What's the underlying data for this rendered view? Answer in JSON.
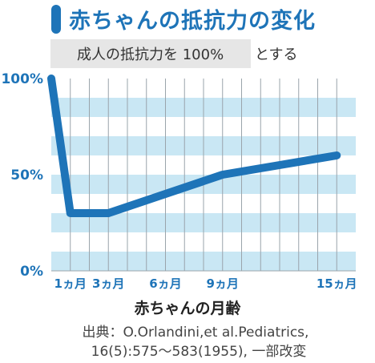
{
  "title": "赤ちゃんの抵抗力の変化",
  "note": {
    "boxed": "成人の抵抗力を 100%",
    "suffix": "とする"
  },
  "source": {
    "line1": "出典：O.Orlandini,et al.Pediatrics,",
    "line2": "16(5):575～583(1955), 一部改変"
  },
  "colors": {
    "accent": "#1e74b8",
    "stripe": "#c9e7f4",
    "line": "#1e74b8"
  },
  "chart_data": {
    "type": "line",
    "xlabel": "赤ちゃんの月齢",
    "ylabel": "",
    "xlim": [
      0,
      16
    ],
    "ylim": [
      0,
      100
    ],
    "x_ticks": [
      {
        "value": 1,
        "label": "1ヵ月"
      },
      {
        "value": 3,
        "label": "3ヵ月"
      },
      {
        "value": 6,
        "label": "6ヵ月"
      },
      {
        "value": 9,
        "label": "9ヵ月"
      },
      {
        "value": 15,
        "label": "15ヵ月"
      }
    ],
    "y_ticks": [
      {
        "value": 0,
        "label": "0%"
      },
      {
        "value": 50,
        "label": "50%"
      },
      {
        "value": 100,
        "label": "100%"
      }
    ],
    "series": [
      {
        "x": [
          0,
          1,
          3,
          6,
          9,
          12,
          15
        ],
        "y": [
          100,
          30,
          30,
          40,
          50,
          55,
          60
        ]
      }
    ],
    "grid": true
  }
}
